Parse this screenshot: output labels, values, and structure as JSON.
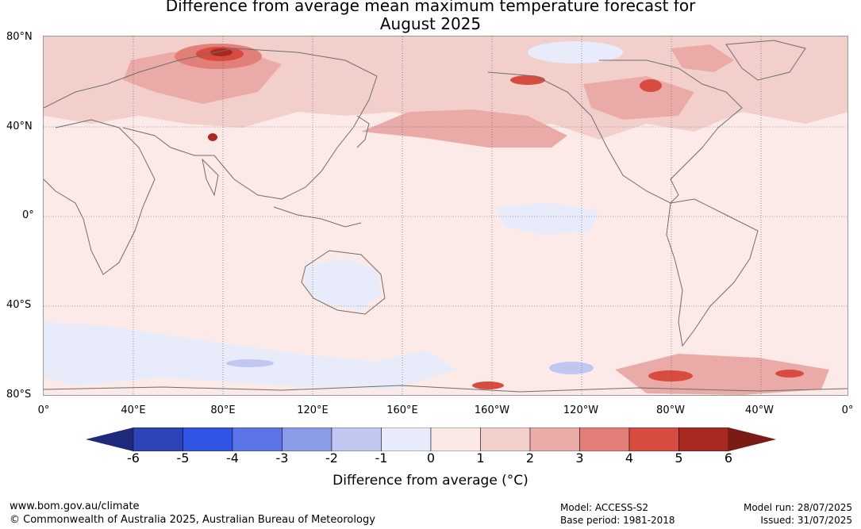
{
  "title_line1": "Difference from average mean maximum temperature forecast for",
  "title_line2": "August 2025",
  "map": {
    "lat_labels": [
      "80°N",
      "40°N",
      "0°",
      "40°S",
      "80°S"
    ],
    "lon_labels": [
      "0°",
      "40°E",
      "80°E",
      "120°E",
      "160°E",
      "160°W",
      "120°W",
      "80°W",
      "40°W",
      "0°"
    ],
    "colors": {
      "ocean_background": "#fbeae8",
      "coast": "#6e6e6e",
      "grid": "#555555"
    }
  },
  "colorbar": {
    "ticks": [
      "-6",
      "-5",
      "-4",
      "-3",
      "-2",
      "-1",
      "0",
      "1",
      "2",
      "3",
      "4",
      "5",
      "6"
    ],
    "colors": [
      "#1f2a7a",
      "#2c44b8",
      "#3355e6",
      "#5b74e8",
      "#8a9be8",
      "#c0c8f1",
      "#e8ecfa",
      "#fbe9e8",
      "#f3cfcc",
      "#eaaba8",
      "#e27f78",
      "#d74b41",
      "#a82920",
      "#7a1b16"
    ],
    "label": "Difference from average (°C)"
  },
  "footer": {
    "url": "www.bom.gov.au/climate",
    "copyright": "© Commonwealth of Australia 2025, Australian Bureau of Meteorology",
    "model": "Model: ACCESS-S2",
    "base_period": "Base period: 1981-2018",
    "model_run": "Model run: 28/07/2025",
    "issued": "Issued: 31/07/2025"
  }
}
